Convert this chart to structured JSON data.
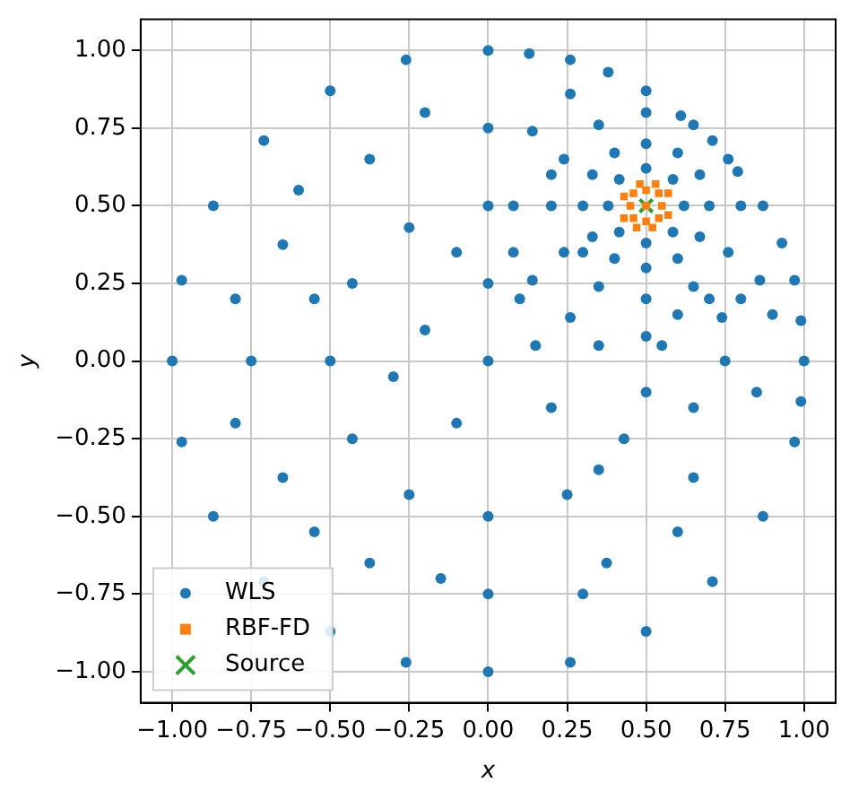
{
  "chart_data": {
    "type": "scatter",
    "xlabel": "x",
    "ylabel": "y",
    "xlim": [
      -1.1,
      1.1
    ],
    "ylim": [
      -1.1,
      1.1
    ],
    "xticks": [
      {
        "value": -1,
        "label": "−1.00"
      },
      {
        "value": -0.75,
        "label": "−0.75"
      },
      {
        "value": -0.5,
        "label": "−0.50"
      },
      {
        "value": -0.25,
        "label": "−0.25"
      },
      {
        "value": 0,
        "label": "0.00"
      },
      {
        "value": 0.25,
        "label": "0.25"
      },
      {
        "value": 0.5,
        "label": "0.50"
      },
      {
        "value": 0.75,
        "label": "0.75"
      },
      {
        "value": 1,
        "label": "1.00"
      }
    ],
    "yticks": [
      {
        "value": -1,
        "label": "−1.00"
      },
      {
        "value": -0.75,
        "label": "−0.75"
      },
      {
        "value": -0.5,
        "label": "−0.50"
      },
      {
        "value": -0.25,
        "label": "−0.25"
      },
      {
        "value": 0,
        "label": "0.00"
      },
      {
        "value": 0.25,
        "label": "0.25"
      },
      {
        "value": 0.5,
        "label": "0.50"
      },
      {
        "value": 0.75,
        "label": "0.75"
      },
      {
        "value": 1,
        "label": "1.00"
      }
    ],
    "grid": true,
    "legend": "bottom left",
    "series": [
      {
        "name": "WLS",
        "color": "#1f77b4",
        "marker": "circle",
        "x": [
          1,
          0.97,
          0.87,
          0.71,
          0.5,
          0.26,
          0,
          -0.26,
          -0.5,
          -0.71,
          -0.87,
          -0.97,
          -1,
          -0.97,
          -0.87,
          -0.71,
          -0.5,
          -0.26,
          0,
          0.26,
          0.5,
          0.71,
          0.87,
          0.97,
          0.99,
          0.93,
          0.79,
          0.61,
          0.38,
          0.13,
          0.99,
          0.62,
          0.585,
          0.5,
          0.415,
          0.38,
          0.415,
          0.5,
          0.585,
          0.7,
          0.67,
          0.6,
          0.5,
          0.4,
          0.33,
          0.3,
          0.33,
          0.4,
          0.5,
          0.6,
          0.67,
          0.8,
          0.76,
          0.65,
          0.5,
          0.35,
          0.24,
          0.2,
          0.24,
          0.35,
          0.5,
          0.65,
          0.76,
          0.08,
          0.14,
          0.14,
          0.26,
          0.5,
          0.8,
          0.86,
          0.74,
          0.26,
          0.08,
          -0.5,
          -0.43,
          -0.25,
          -0.43,
          -0.25,
          0,
          0.25,
          0.43,
          0,
          -0.75,
          -0.65,
          -0.375,
          0,
          -0.65,
          -0.375,
          0,
          0.375,
          0.65,
          0.75,
          0.7,
          0,
          -0.2,
          0.15,
          -0.1,
          0.2,
          0.1,
          0.35,
          0.55,
          0.5,
          0.6,
          0.3,
          -0.15,
          -0.55,
          -0.8,
          -0.8,
          -0.6,
          -0.2,
          -0.55,
          -0.3,
          0,
          -0.1,
          0.35,
          0.85,
          0.9,
          0.6,
          0.3,
          0.2,
          0.65
        ],
        "values": [
          0,
          0.26,
          0.5,
          0.71,
          0.87,
          0.97,
          1,
          0.97,
          0.87,
          0.71,
          0.5,
          0.26,
          0,
          -0.26,
          -0.5,
          -0.71,
          -0.87,
          -0.97,
          -1,
          -0.97,
          -0.87,
          -0.71,
          -0.5,
          -0.26,
          0.13,
          0.38,
          0.61,
          0.79,
          0.93,
          0.99,
          -0.13,
          0.5,
          0.585,
          0.62,
          0.585,
          0.5,
          0.415,
          0.38,
          0.415,
          0.5,
          0.6,
          0.67,
          0.7,
          0.67,
          0.6,
          0.5,
          0.4,
          0.33,
          0.3,
          0.33,
          0.4,
          0.5,
          0.65,
          0.76,
          0.8,
          0.76,
          0.65,
          0.5,
          0.35,
          0.24,
          0.2,
          0.24,
          0.35,
          0.5,
          0.74,
          0.26,
          0.86,
          0.08,
          0.2,
          0.26,
          0.14,
          0.14,
          0.35,
          0,
          0.25,
          0.43,
          -0.25,
          -0.43,
          -0.5,
          -0.43,
          -0.25,
          0.5,
          0,
          0.375,
          0.65,
          0.75,
          -0.375,
          -0.65,
          -0.75,
          -0.65,
          -0.375,
          0,
          0.2,
          0,
          0.1,
          0.05,
          -0.2,
          -0.15,
          0.2,
          0.05,
          0.05,
          -0.1,
          -0.55,
          -0.75,
          -0.7,
          -0.55,
          -0.2,
          0.2,
          0.55,
          0.8,
          0.2,
          -0.05,
          0.25,
          0.35,
          -0.35,
          -0.1,
          0.15,
          0.15,
          0.35,
          0.6,
          -0.15
        ]
      },
      {
        "name": "RBF-FD",
        "color": "#ff7f0e",
        "marker": "square",
        "x": [
          0.45,
          0.55,
          0.5,
          0.5,
          0.46,
          0.54,
          0.46,
          0.54,
          0.43,
          0.57,
          0.52,
          0.48,
          0.57,
          0.43,
          0.47,
          0.53,
          0.5
        ],
        "values": [
          0.5,
          0.5,
          0.45,
          0.55,
          0.46,
          0.54,
          0.54,
          0.46,
          0.53,
          0.47,
          0.43,
          0.57,
          0.54,
          0.46,
          0.43,
          0.57,
          0.5
        ]
      },
      {
        "name": "Source",
        "color": "#2ca02c",
        "marker": "cross",
        "x": [
          0.5
        ],
        "values": [
          0.5
        ]
      }
    ]
  }
}
